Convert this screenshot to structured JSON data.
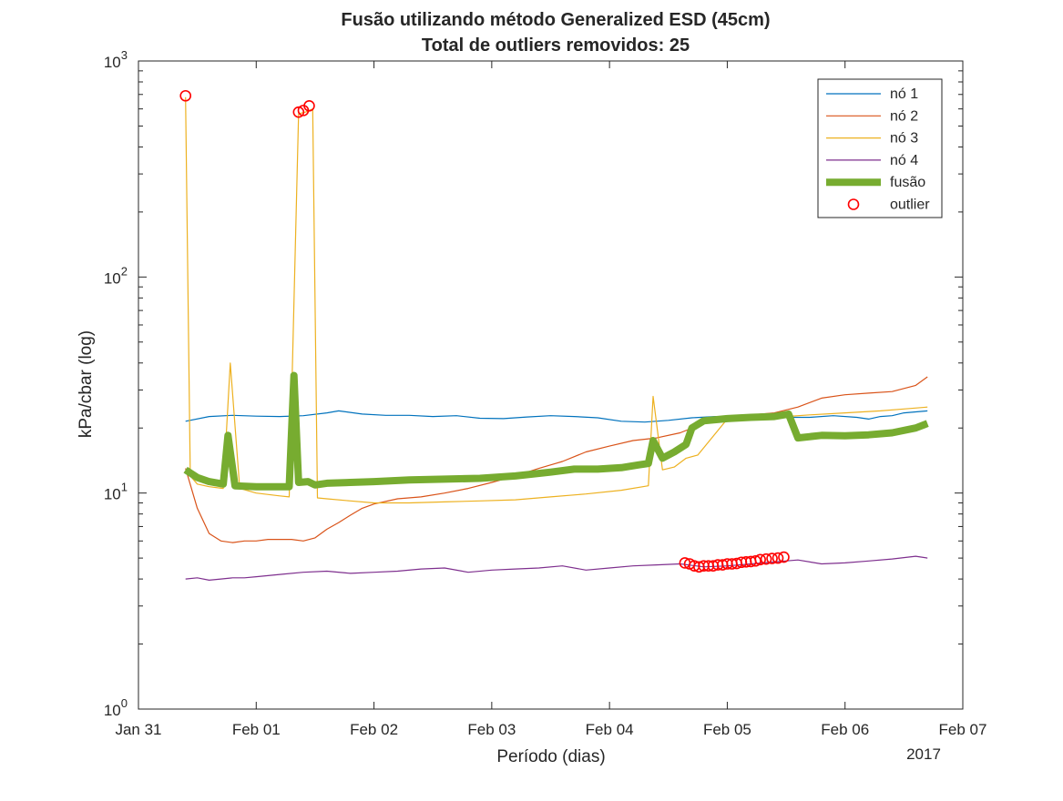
{
  "chart_data": {
    "type": "line",
    "title": "Fusão utilizando método Generalized ESD (45cm)",
    "subtitle": "Total de outliers removidos: 25",
    "xlabel": "Período (dias)",
    "ylabel": "kPa/cbar (log)",
    "x_year_label": "2017",
    "y_scale": "log",
    "ylim": [
      1,
      1000
    ],
    "xlim": [
      0,
      7
    ],
    "x_unit_note": "x values are days after Jan 31 2017",
    "x_ticks": [
      {
        "v": 0,
        "label": "Jan 31"
      },
      {
        "v": 1,
        "label": "Feb 01"
      },
      {
        "v": 2,
        "label": "Feb 02"
      },
      {
        "v": 3,
        "label": "Feb 03"
      },
      {
        "v": 4,
        "label": "Feb 04"
      },
      {
        "v": 5,
        "label": "Feb 05"
      },
      {
        "v": 6,
        "label": "Feb 06"
      },
      {
        "v": 7,
        "label": "Feb 07"
      }
    ],
    "y_ticks": [
      {
        "v": 1,
        "base": "10",
        "exp": "0"
      },
      {
        "v": 10,
        "base": "10",
        "exp": "1"
      },
      {
        "v": 100,
        "base": "10",
        "exp": "2"
      },
      {
        "v": 1000,
        "base": "10",
        "exp": "3"
      }
    ],
    "legend_position": "top-right",
    "series": [
      {
        "name": "nó 1",
        "color": "#0072bd",
        "width": 1.2,
        "x": [
          0.4,
          0.6,
          0.8,
          1.0,
          1.2,
          1.4,
          1.6,
          1.7,
          1.9,
          2.1,
          2.3,
          2.5,
          2.7,
          2.9,
          3.1,
          3.3,
          3.5,
          3.7,
          3.9,
          4.1,
          4.3,
          4.5,
          4.7,
          4.9,
          5.1,
          5.3,
          5.5,
          5.7,
          5.9,
          6.1,
          6.2,
          6.3,
          6.4,
          6.5,
          6.7
        ],
        "y": [
          21.5,
          22.6,
          22.9,
          22.7,
          22.6,
          22.8,
          23.5,
          24.0,
          23.2,
          22.9,
          22.9,
          22.6,
          22.8,
          22.2,
          22.1,
          22.5,
          22.8,
          22.6,
          22.3,
          21.5,
          21.3,
          21.7,
          22.3,
          22.6,
          22.6,
          22.6,
          22.4,
          22.4,
          22.8,
          22.4,
          22.0,
          22.6,
          22.8,
          23.5,
          24.0
        ]
      },
      {
        "name": "nó 2",
        "color": "#d95319",
        "width": 1.2,
        "x": [
          0.4,
          0.5,
          0.6,
          0.7,
          0.8,
          0.9,
          1.0,
          1.1,
          1.2,
          1.3,
          1.4,
          1.5,
          1.6,
          1.7,
          1.8,
          1.9,
          2.0,
          2.2,
          2.4,
          2.6,
          2.8,
          3.0,
          3.2,
          3.4,
          3.6,
          3.8,
          4.0,
          4.2,
          4.4,
          4.6,
          4.8,
          5.0,
          5.2,
          5.4,
          5.6,
          5.8,
          6.0,
          6.2,
          6.4,
          6.6,
          6.7
        ],
        "y": [
          13.0,
          8.5,
          6.5,
          6.0,
          5.9,
          6.0,
          6.0,
          6.1,
          6.1,
          6.1,
          6.0,
          6.2,
          6.8,
          7.3,
          7.9,
          8.5,
          8.9,
          9.4,
          9.6,
          10.0,
          10.5,
          11.2,
          12.0,
          13.0,
          14.0,
          15.5,
          16.5,
          17.5,
          18.0,
          19.0,
          21.0,
          22.5,
          23.0,
          23.5,
          25.0,
          27.5,
          28.5,
          29.0,
          29.5,
          31.5,
          34.5
        ]
      },
      {
        "name": "nó 3",
        "color": "#edb120",
        "width": 1.2,
        "x": [
          0.4,
          0.44,
          0.5,
          0.6,
          0.72,
          0.78,
          0.86,
          1.0,
          1.2,
          1.28,
          1.36,
          1.42,
          1.48,
          1.52,
          1.6,
          1.8,
          2.0,
          2.3,
          2.6,
          2.9,
          3.2,
          3.5,
          3.8,
          4.1,
          4.33,
          4.37,
          4.45,
          4.55,
          4.65,
          4.75,
          5.0,
          5.3,
          5.5,
          5.7,
          6.0,
          6.3,
          6.5,
          6.7
        ],
        "y": [
          680,
          12.0,
          11.0,
          10.7,
          10.5,
          40.0,
          10.5,
          10.0,
          9.7,
          9.6,
          570,
          580,
          600,
          9.5,
          9.4,
          9.2,
          9.0,
          9.0,
          9.1,
          9.2,
          9.3,
          9.6,
          9.9,
          10.3,
          10.8,
          28.0,
          12.8,
          13.2,
          14.5,
          15.0,
          22.0,
          22.3,
          22.6,
          23.0,
          23.5,
          24.0,
          24.5,
          25.0
        ]
      },
      {
        "name": "nó 4",
        "color": "#7e2f8e",
        "width": 1.2,
        "x": [
          0.4,
          0.5,
          0.6,
          0.7,
          0.8,
          0.9,
          1.0,
          1.2,
          1.4,
          1.6,
          1.8,
          2.0,
          2.2,
          2.4,
          2.6,
          2.8,
          3.0,
          3.2,
          3.4,
          3.6,
          3.8,
          4.0,
          4.2,
          4.4,
          4.6,
          4.8,
          5.0,
          5.2,
          5.4,
          5.6,
          5.8,
          6.0,
          6.2,
          6.4,
          6.6,
          6.7
        ],
        "y": [
          4.0,
          4.05,
          3.95,
          4.0,
          4.05,
          4.05,
          4.1,
          4.2,
          4.3,
          4.35,
          4.25,
          4.3,
          4.35,
          4.45,
          4.5,
          4.3,
          4.4,
          4.45,
          4.5,
          4.6,
          4.4,
          4.5,
          4.6,
          4.65,
          4.7,
          4.55,
          4.6,
          4.7,
          4.8,
          4.9,
          4.7,
          4.75,
          4.85,
          4.95,
          5.1,
          5.0
        ]
      },
      {
        "name": "fusão",
        "color": "#77ac30",
        "width": 8,
        "x": [
          0.4,
          0.5,
          0.6,
          0.72,
          0.76,
          0.82,
          1.0,
          1.15,
          1.28,
          1.32,
          1.36,
          1.44,
          1.5,
          1.6,
          1.8,
          2.0,
          2.3,
          2.6,
          2.9,
          3.2,
          3.5,
          3.7,
          3.9,
          4.1,
          4.25,
          4.33,
          4.37,
          4.45,
          4.55,
          4.65,
          4.7,
          4.8,
          5.0,
          5.2,
          5.4,
          5.52,
          5.6,
          5.8,
          6.0,
          6.2,
          6.4,
          6.6,
          6.7
        ],
        "y": [
          12.8,
          11.8,
          11.3,
          11.0,
          18.5,
          10.8,
          10.7,
          10.7,
          10.7,
          35.0,
          11.2,
          11.3,
          10.9,
          11.1,
          11.2,
          11.3,
          11.5,
          11.6,
          11.7,
          12.0,
          12.5,
          12.9,
          12.9,
          13.1,
          13.5,
          13.7,
          17.5,
          14.5,
          15.5,
          16.8,
          20.0,
          21.6,
          22.1,
          22.4,
          22.6,
          23.2,
          18.0,
          18.5,
          18.4,
          18.6,
          19.0,
          20.0,
          21.0
        ]
      }
    ],
    "outliers": {
      "name": "outlier",
      "color": "#ff0000",
      "x": [
        0.4,
        1.36,
        1.4,
        1.45,
        4.64,
        4.68,
        4.72,
        4.76,
        4.8,
        4.84,
        4.88,
        4.92,
        4.96,
        5.0,
        5.04,
        5.08,
        5.12,
        5.16,
        5.2,
        5.24,
        5.28,
        5.33,
        5.38,
        5.43,
        5.48
      ],
      "y": [
        690,
        580,
        590,
        620,
        4.75,
        4.7,
        4.6,
        4.55,
        4.6,
        4.6,
        4.6,
        4.65,
        4.65,
        4.7,
        4.7,
        4.72,
        4.78,
        4.8,
        4.82,
        4.85,
        4.92,
        4.95,
        4.98,
        5.0,
        5.05
      ]
    }
  }
}
